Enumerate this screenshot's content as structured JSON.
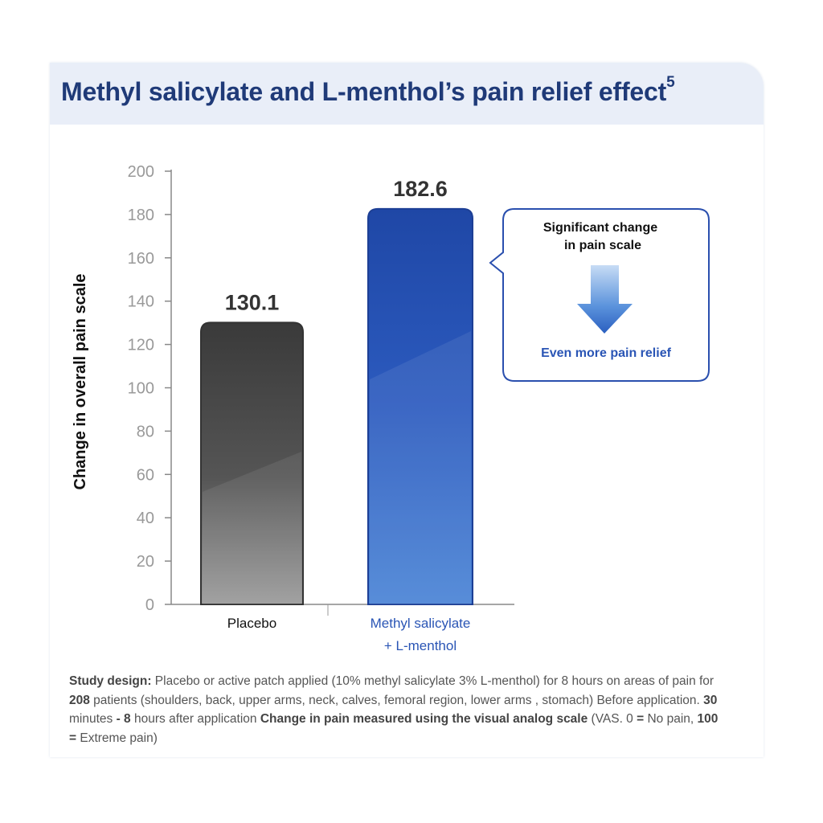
{
  "title": {
    "text": "Methyl salicylate and L-menthol’s pain relief effect",
    "superscript": "5"
  },
  "chart_data": {
    "type": "bar",
    "title": "Methyl salicylate and L-menthol’s pain relief effect",
    "xlabel": "",
    "ylabel": "Change in overall pain scale",
    "ylim": [
      0,
      200
    ],
    "yticks": [
      0,
      20,
      40,
      60,
      80,
      100,
      120,
      140,
      160,
      180,
      200
    ],
    "grid": false,
    "categories": [
      "Placebo",
      "Methyl salicylate\n+ L-menthol"
    ],
    "category_lines": [
      [
        "Placebo"
      ],
      [
        "Methyl salicylate",
        "+ L-menthol"
      ]
    ],
    "values": [
      130.1,
      182.6
    ],
    "data_labels": [
      "130.1",
      "182.6"
    ],
    "colors": [
      "#4a4a4a",
      "#2a4fae"
    ]
  },
  "callout": {
    "heading_lines": [
      "Significant change",
      "in pain scale"
    ],
    "arrow_icon": "down-arrow-icon",
    "footer": "Even more pain relief"
  },
  "note": {
    "parts": [
      {
        "b": true,
        "t": "Study design:"
      },
      {
        "b": false,
        "t": " Placebo or active patch applied (10% methyl salicylate 3% L-menthol) for 8 hours on areas of pain for "
      },
      {
        "b": true,
        "t": "208"
      },
      {
        "b": false,
        "t": " patients (shoulders, back, upper arms, neck, calves, femoral region, lower arms , stomach) Before application. "
      },
      {
        "b": true,
        "t": "30"
      },
      {
        "b": false,
        "t": " minutes "
      },
      {
        "b": true,
        "t": "- 8"
      },
      {
        "b": false,
        "t": " hours after application "
      },
      {
        "b": true,
        "t": "Change in pain measured using the visual analog scale"
      },
      {
        "b": false,
        "t": " (VAS. 0 "
      },
      {
        "b": true,
        "t": "="
      },
      {
        "b": false,
        "t": " No pain, "
      },
      {
        "b": true,
        "t": "100 ="
      },
      {
        "b": false,
        "t": " Extreme pain)"
      }
    ]
  }
}
